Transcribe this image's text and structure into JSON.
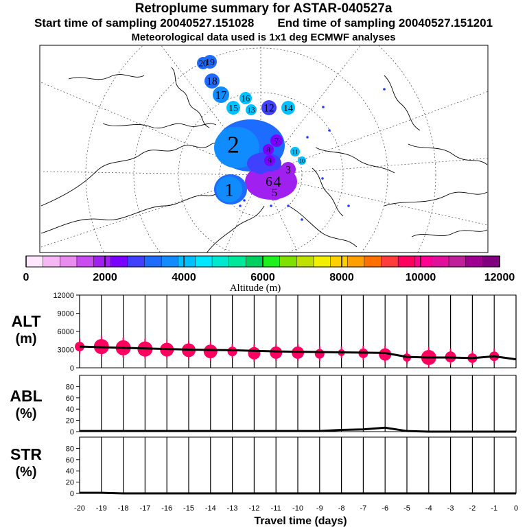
{
  "header": {
    "title": "Retroplume summary for ASTAR-040527a",
    "start": "Start time of sampling 20040527.151028",
    "end": "End time of sampling 20040527.151201",
    "met": "Meteorological data used is 1x1 deg ECMWF analyses"
  },
  "colorbar": {
    "label": "Altitude (m)",
    "ticks": [
      "0",
      "2000",
      "4000",
      "6000",
      "8000",
      "10000",
      "12000"
    ],
    "colors": [
      "#ffe8ff",
      "#f5b8f5",
      "#e98cf0",
      "#c84cf0",
      "#a020f0",
      "#7a00ff",
      "#4040ff",
      "#1e6cff",
      "#108cff",
      "#00c0ff",
      "#00e8ff",
      "#00e8d0",
      "#00e89a",
      "#00d060",
      "#20f020",
      "#80e000",
      "#c0e000",
      "#f0f000",
      "#ffd000",
      "#ffa000",
      "#ff7000",
      "#ff3c3c",
      "#ff0060",
      "#ff0090",
      "#e0109a",
      "#c0209a",
      "#a00090",
      "#800080"
    ]
  },
  "map": {
    "plume_labels": [
      "20",
      "19",
      "18",
      "17",
      "16",
      "15",
      "14",
      "13",
      "12",
      "11",
      "10",
      "9",
      "8",
      "7",
      "6",
      "5",
      "4",
      "3",
      "2",
      "1"
    ],
    "colors": {
      "ocean_line": "#000000",
      "grid": "#404040"
    }
  },
  "chart_data": [
    {
      "type": "scatter",
      "name": "ALT",
      "ylabel": "ALT (m)",
      "ylim": [
        0,
        12000
      ],
      "yticks": [
        "0",
        "3000",
        "6000",
        "9000",
        "12000"
      ],
      "x": [
        -20,
        -19,
        -18,
        -17,
        -16,
        -15,
        -14,
        -13,
        -12,
        -11,
        -10,
        -9,
        -8,
        -7,
        -6,
        -5,
        -4,
        -3,
        -2,
        -1,
        0
      ],
      "line": [
        3500,
        3400,
        3300,
        3200,
        3100,
        3000,
        2950,
        2900,
        2800,
        2700,
        2650,
        2600,
        2550,
        2500,
        2450,
        1800,
        1700,
        1700,
        1600,
        1900,
        1400
      ],
      "points": [
        {
          "x": -20,
          "y": 3500,
          "size": 7
        },
        {
          "x": -19,
          "y": 3500,
          "size": 11
        },
        {
          "x": -18,
          "y": 3300,
          "size": 11
        },
        {
          "x": -17,
          "y": 3100,
          "size": 11
        },
        {
          "x": -16,
          "y": 3000,
          "size": 10
        },
        {
          "x": -15,
          "y": 2900,
          "size": 10
        },
        {
          "x": -14,
          "y": 2700,
          "size": 10
        },
        {
          "x": -13,
          "y": 2700,
          "size": 7
        },
        {
          "x": -12,
          "y": 2400,
          "size": 9
        },
        {
          "x": -11,
          "y": 2500,
          "size": 9
        },
        {
          "x": -10,
          "y": 2500,
          "size": 9
        },
        {
          "x": -9,
          "y": 2300,
          "size": 7
        },
        {
          "x": -8,
          "y": 2500,
          "size": 5
        },
        {
          "x": -7,
          "y": 2400,
          "size": 7
        },
        {
          "x": -6,
          "y": 2200,
          "size": 9
        },
        {
          "x": -5,
          "y": 1700,
          "size": 6
        },
        {
          "x": -4,
          "y": 1700,
          "size": 11
        },
        {
          "x": -3,
          "y": 1800,
          "size": 8
        },
        {
          "x": -2,
          "y": 1600,
          "size": 7
        },
        {
          "x": -1,
          "y": 1900,
          "size": 7
        }
      ],
      "color": "#ff0060"
    },
    {
      "type": "line",
      "name": "ABL",
      "ylabel": "ABL (%)",
      "ylim": [
        0,
        100
      ],
      "yticks": [
        "0",
        "20",
        "40",
        "60",
        "80"
      ],
      "x": [
        -20,
        -19,
        -18,
        -17,
        -16,
        -15,
        -14,
        -13,
        -12,
        -11,
        -10,
        -9,
        -8,
        -7,
        -6,
        -5,
        -4,
        -3,
        -2,
        -1,
        0
      ],
      "values": [
        1,
        1,
        1,
        1,
        1,
        1,
        1,
        1,
        1,
        1,
        1,
        1,
        3,
        4,
        7,
        1,
        0,
        0,
        0,
        0,
        0
      ]
    },
    {
      "type": "line",
      "name": "STR",
      "ylabel": "STR (%)",
      "ylim": [
        0,
        100
      ],
      "yticks": [
        "0",
        "20",
        "40",
        "60",
        "80"
      ],
      "x": [
        -20,
        -19,
        -18,
        -17,
        -16,
        -15,
        -14,
        -13,
        -12,
        -11,
        -10,
        -9,
        -8,
        -7,
        -6,
        -5,
        -4,
        -3,
        -2,
        -1,
        0
      ],
      "values": [
        1,
        1,
        0,
        0,
        0,
        0,
        0,
        0,
        0,
        0,
        0,
        0,
        0,
        0,
        0,
        0,
        0,
        0,
        0,
        0,
        0
      ]
    }
  ],
  "xaxis": {
    "label": "Travel time (days)",
    "ticks": [
      "-20",
      "-19",
      "-18",
      "-17",
      "-16",
      "-15",
      "-14",
      "-13",
      "-12",
      "-11",
      "-10",
      "-9",
      "-8",
      "-7",
      "-6",
      "-5",
      "-4",
      "-3",
      "-2",
      "-1",
      "0"
    ]
  },
  "panel_labels": {
    "alt": [
      "ALT",
      "(m)"
    ],
    "abl": [
      "ABL",
      "(%)"
    ],
    "str": [
      "STR",
      "(%)"
    ]
  }
}
